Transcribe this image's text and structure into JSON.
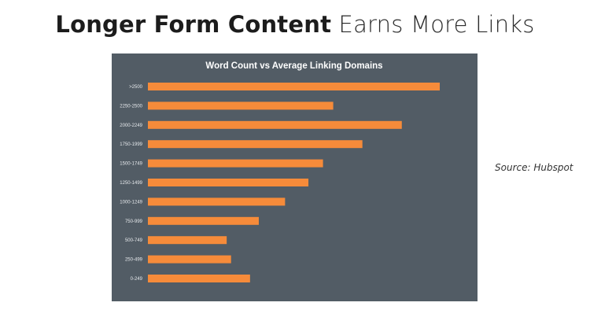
{
  "slide": {
    "title_bold": "Longer Form Content",
    "title_light": " Earns More Links",
    "source": "Source: Hubspot"
  },
  "colors": {
    "panel_bg": "#525c65",
    "bar": "#f68b3a",
    "label": "#e6e9ec",
    "title": "#ffffff"
  },
  "chart_data": {
    "type": "bar",
    "orientation": "horizontal",
    "title": "Word Count vs Average Linking Domains",
    "xlabel": "",
    "ylabel": "",
    "grid": false,
    "categories": [
      ">2500",
      "2250-2500",
      "2000-2249",
      "1750-1999",
      "1500-1749",
      "1250-1499",
      "1000-1249",
      "750-999",
      "500-749",
      "250-499",
      "0-249"
    ],
    "values": [
      100,
      63.5,
      87,
      73.5,
      60,
      55,
      47,
      38,
      27,
      28.5,
      35
    ],
    "xlim": [
      0,
      100
    ]
  }
}
